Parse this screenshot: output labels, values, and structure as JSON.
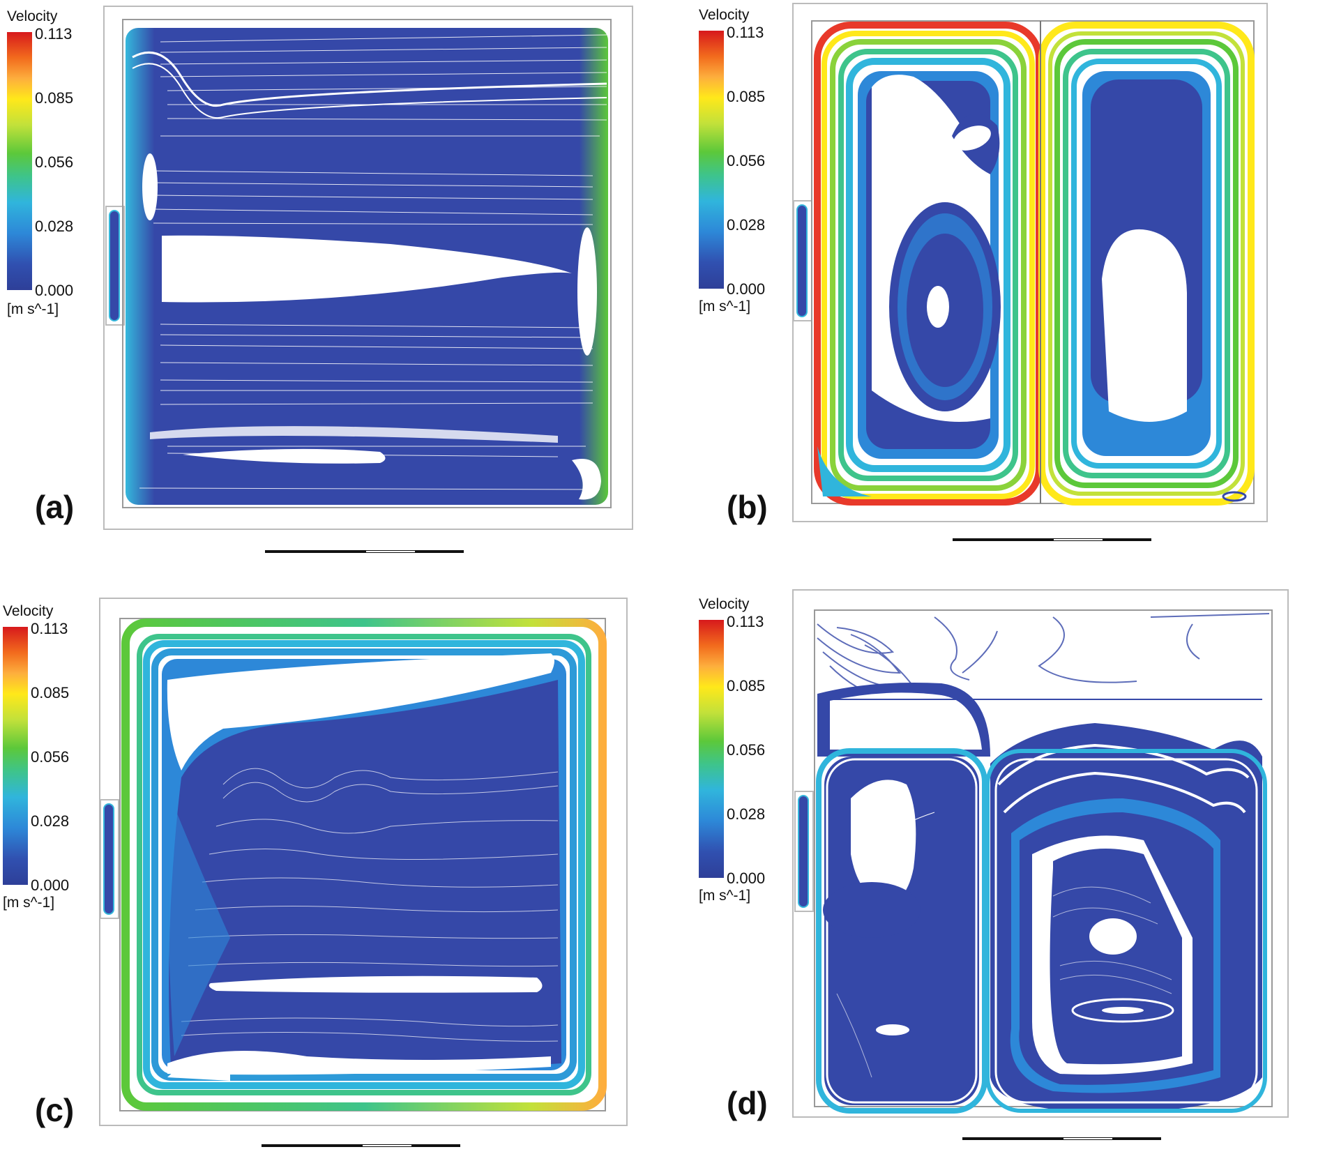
{
  "legend": {
    "title": "Velocity",
    "unit": "[m s^-1]",
    "ticks": [
      "0.113",
      "0.085",
      "0.056",
      "0.028",
      "0.000"
    ],
    "colors": [
      "#d7191c",
      "#ffe81a",
      "#5cc83a",
      "#30b5dc",
      "#2e3f98"
    ]
  },
  "panels": [
    {
      "label": "(a)",
      "pattern": "single-cell-horizontal-layers"
    },
    {
      "label": "(b)",
      "pattern": "two-counter-cells"
    },
    {
      "label": "(c)",
      "pattern": "single-cell-perimeter-flow"
    },
    {
      "label": "(d)",
      "pattern": "two-cells-with-top-dead-zone"
    }
  ],
  "streamline_color": "#3548a8"
}
